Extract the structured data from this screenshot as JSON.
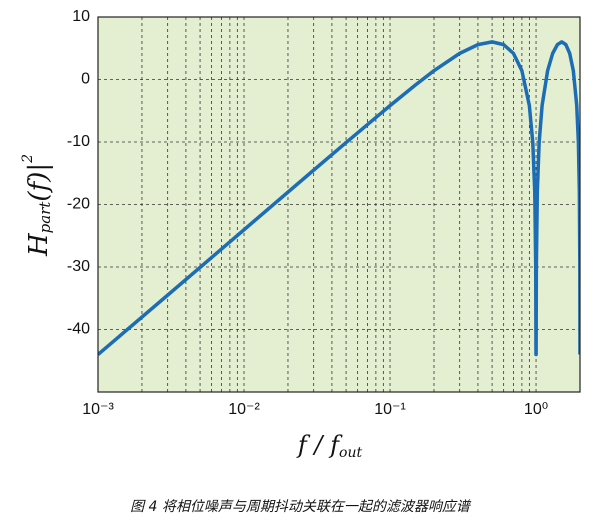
{
  "chart_data": {
    "type": "line",
    "log_x": true,
    "grid": true,
    "background": "#e4efd2",
    "ylabel": {
      "main": "H",
      "sub": "part",
      "rest": "(f)|",
      "sup": "2"
    },
    "xlabel": {
      "main": "f / f",
      "sub": "out"
    },
    "caption": "图 4    将相位噪声与周期抖动关联在一起的滤波器响应谱",
    "xlim": [
      0.001,
      2
    ],
    "ylim": [
      -50,
      10
    ],
    "xticks": [
      {
        "value": 0.001,
        "label": "10⁻³"
      },
      {
        "value": 0.01,
        "label": "10⁻²"
      },
      {
        "value": 0.1,
        "label": "10⁻¹"
      },
      {
        "value": 1,
        "label": "10⁰"
      }
    ],
    "x_minor_ticks": [
      0.002,
      0.003,
      0.004,
      0.005,
      0.006,
      0.007,
      0.008,
      0.009,
      0.02,
      0.03,
      0.04,
      0.05,
      0.06,
      0.07,
      0.08,
      0.09,
      0.2,
      0.3,
      0.4,
      0.5,
      0.6,
      0.7,
      0.8,
      0.9,
      2
    ],
    "yticks": [
      10,
      0,
      -10,
      -20,
      -30,
      -40
    ],
    "series": [
      {
        "color": "#1c6db3",
        "x": [
          0.001,
          0.003,
          0.01,
          0.03,
          0.05,
          0.1,
          0.15,
          0.2,
          0.3,
          0.4,
          0.5,
          0.6,
          0.7,
          0.8,
          0.9,
          0.95,
          0.98,
          0.995,
          0.999,
          1.001,
          1.005,
          1.02,
          1.05,
          1.1,
          1.2,
          1.3,
          1.4,
          1.5,
          1.6,
          1.7,
          1.8,
          1.9,
          1.95,
          1.98,
          1.995,
          1.999
        ],
        "values": [
          -44.0,
          -34.5,
          -24.04,
          -14.5,
          -10.09,
          -4.18,
          -0.84,
          1.41,
          4.18,
          5.58,
          6.02,
          5.58,
          4.18,
          1.41,
          -4.18,
          -10.09,
          -18.02,
          -30.06,
          -44.0,
          -44.0,
          -30.06,
          -18.02,
          -10.09,
          -4.18,
          1.41,
          4.18,
          5.58,
          6.02,
          5.58,
          4.18,
          1.41,
          -4.18,
          -10.09,
          -18.02,
          -30.06,
          -44.0
        ]
      }
    ]
  }
}
